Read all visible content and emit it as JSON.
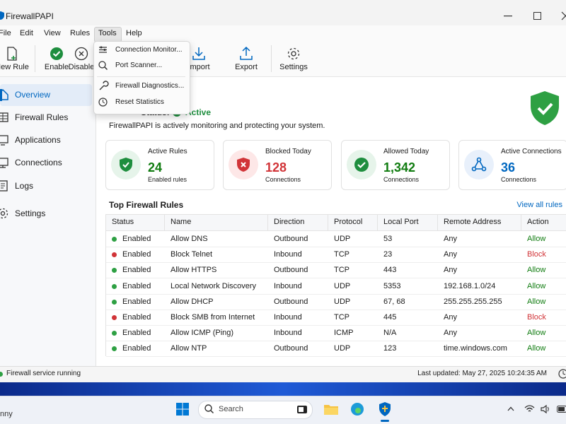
{
  "window": {
    "title": "FirewallPAPI"
  },
  "menu": [
    "File",
    "Edit",
    "View",
    "Rules",
    "Tools",
    "Help"
  ],
  "toolbar": [
    "New Rule",
    "Enable",
    "Disable",
    "Import",
    "Export",
    "Settings"
  ],
  "tools_menu": [
    "Connection Monitor...",
    "Port Scanner...",
    "Firewall Diagnostics...",
    "Reset Statistics"
  ],
  "sidebar": [
    "Overview",
    "Firewall Rules",
    "Applications",
    "Connections",
    "Logs",
    "Settings"
  ],
  "status": {
    "label": "Status:",
    "value": "Active",
    "description": "FirewallPAPI is actively monitoring and protecting your system."
  },
  "cards": [
    {
      "title": "Active Rules",
      "value": "24",
      "subtitle": "Enabled rules"
    },
    {
      "title": "Blocked Today",
      "value": "128",
      "subtitle": "Connections"
    },
    {
      "title": "Allowed Today",
      "value": "1,342",
      "subtitle": "Connections"
    },
    {
      "title": "Active Connections",
      "value": "36",
      "subtitle": "Connections"
    }
  ],
  "rules": {
    "title": "Top Firewall Rules",
    "link": "View all rules",
    "columns": [
      "Status",
      "Name",
      "Direction",
      "Protocol",
      "Local Port",
      "Remote Address",
      "Action"
    ],
    "rows": [
      [
        "Enabled",
        "Allow DNS",
        "Outbound",
        "UDP",
        "53",
        "Any",
        "Allow"
      ],
      [
        "Enabled",
        "Block Telnet",
        "Inbound",
        "TCP",
        "23",
        "Any",
        "Block"
      ],
      [
        "Enabled",
        "Allow HTTPS",
        "Outbound",
        "TCP",
        "443",
        "Any",
        "Allow"
      ],
      [
        "Enabled",
        "Local Network Discovery",
        "Inbound",
        "UDP",
        "5353",
        "192.168.1.0/24",
        "Allow"
      ],
      [
        "Enabled",
        "Allow DHCP",
        "Outbound",
        "UDP",
        "67, 68",
        "255.255.255.255",
        "Allow"
      ],
      [
        "Enabled",
        "Block SMB from Internet",
        "Inbound",
        "TCP",
        "445",
        "Any",
        "Block"
      ],
      [
        "Enabled",
        "Allow ICMP (Ping)",
        "Inbound",
        "ICMP",
        "N/A",
        "Any",
        "Allow"
      ],
      [
        "Enabled",
        "Allow NTP",
        "Outbound",
        "UDP",
        "123",
        "time.windows.com",
        "Allow"
      ]
    ]
  },
  "statusbar": {
    "left": "Firewall service running",
    "right": "Last updated: May 27, 2025 10:24:35 AM"
  },
  "taskbar": {
    "weather": "nny",
    "search": "Search"
  }
}
